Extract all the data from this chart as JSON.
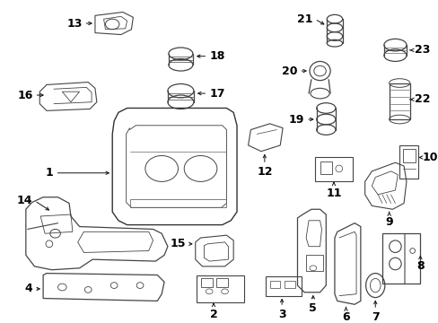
{
  "bg_color": "#ffffff",
  "image_b64": ""
}
